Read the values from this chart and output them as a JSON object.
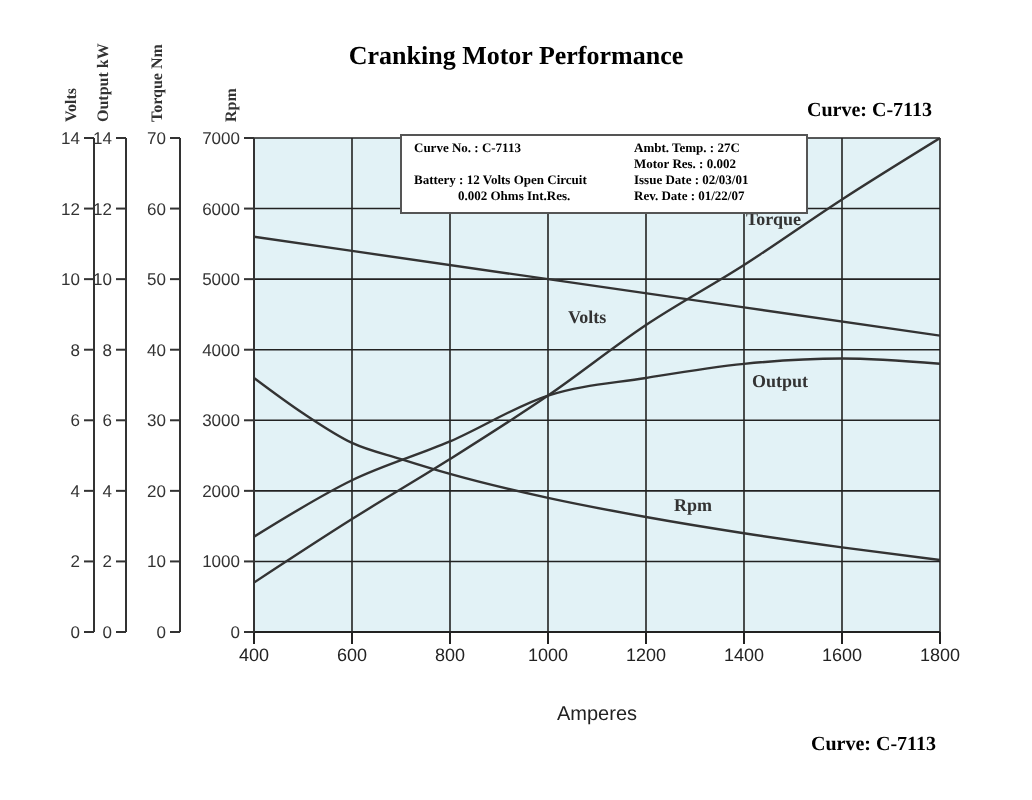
{
  "chart_data": {
    "type": "line",
    "title": "Cranking Motor Performance",
    "xlabel": "Amperes",
    "ylabel": "Rpm",
    "y2label": "Torque Nm",
    "y3label": "Volts",
    "xlim": [
      400,
      1800
    ],
    "xticks": [
      400,
      600,
      800,
      1000,
      1200,
      1400,
      1600,
      1800
    ],
    "ylim": [
      0,
      7000
    ],
    "yticks": [
      0,
      1000,
      2000,
      3000,
      4000,
      5000,
      6000,
      7000
    ],
    "y2lim": [
      0,
      70
    ],
    "y2ticks": [
      0,
      10,
      20,
      30,
      40,
      50,
      60,
      70
    ],
    "y3lim": [
      0,
      14
    ],
    "y3ticks": [
      0,
      2,
      4,
      6,
      8,
      10,
      12,
      14
    ],
    "grid": true,
    "legend": false,
    "marker": "none",
    "line_style": "solid",
    "series": [
      {
        "name": "Volts",
        "color": "#333333",
        "axis": "y3",
        "x": [
          400,
          1000,
          1800
        ],
        "values": [
          11.2,
          10,
          8.4
        ]
      },
      {
        "name": "Torque",
        "color": "#333333",
        "axis": "y2",
        "x": [
          400,
          600,
          800,
          1000,
          1200,
          1400,
          1600,
          1800
        ],
        "values": [
          7,
          16,
          24.5,
          33.5,
          43.5,
          52,
          61.3,
          70
        ]
      },
      {
        "name": "Output",
        "color": "#333333",
        "axis": "y3",
        "x": [
          400,
          600,
          800,
          1000,
          1200,
          1400,
          1600,
          1800
        ],
        "values": [
          2.7,
          4.3,
          5.4,
          6.7,
          7.2,
          7.6,
          7.75,
          7.6
        ]
      },
      {
        "name": "Rpm",
        "color": "#333333",
        "axis": "y",
        "x": [
          400,
          500,
          600,
          700,
          800,
          1000,
          1200,
          1400,
          1600,
          1800
        ],
        "values": [
          3600,
          3100,
          2680,
          2450,
          2240,
          1900,
          1630,
          1400,
          1200,
          1020
        ]
      }
    ],
    "annotations": [
      "Curve: C-7113",
      "Curve: C-7113",
      "Curve No. : C-7113",
      "Ambt. Temp. : 27C",
      "Motor Res. : 0.002",
      "Battery : 12 Volts Open Circuit",
      "Issue Date : 02/03/01",
      "0.002 Ohms Int.Res.",
      "Rev. Date : 01/22/07",
      "Output kW",
      "0",
      "2",
      "4",
      "6",
      "8",
      "10",
      "12",
      "14"
    ]
  }
}
